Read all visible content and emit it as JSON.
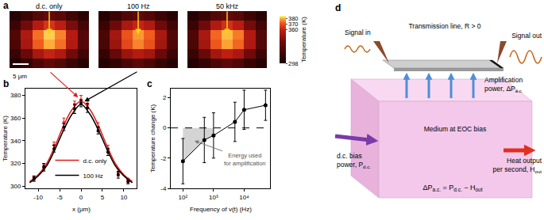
{
  "chart_data": [
    {
      "type": "heatmap",
      "panel": "a",
      "title": "d.c. only",
      "tick_labels": false,
      "scale_bar": "5 μm",
      "zlim": [
        298,
        385
      ],
      "z": [
        [
          302,
          310,
          322,
          330,
          324,
          312,
          304
        ],
        [
          312,
          335,
          352,
          360,
          354,
          338,
          316
        ],
        [
          322,
          352,
          372,
          380,
          374,
          355,
          326
        ],
        [
          324,
          354,
          374,
          382,
          376,
          356,
          326
        ],
        [
          314,
          338,
          356,
          364,
          358,
          340,
          318
        ],
        [
          304,
          314,
          326,
          332,
          328,
          316,
          306
        ]
      ]
    },
    {
      "type": "heatmap",
      "title": "100 Hz",
      "tick_labels": false,
      "zlim": [
        298,
        385
      ],
      "z": [
        [
          302,
          309,
          320,
          328,
          322,
          311,
          303
        ],
        [
          311,
          333,
          349,
          356,
          351,
          335,
          314
        ],
        [
          320,
          349,
          368,
          376,
          370,
          351,
          323
        ],
        [
          322,
          351,
          370,
          378,
          372,
          353,
          324
        ],
        [
          313,
          336,
          353,
          360,
          355,
          337,
          316
        ],
        [
          303,
          313,
          324,
          330,
          325,
          314,
          305
        ]
      ]
    },
    {
      "type": "heatmap",
      "title": "50 kHz",
      "tick_labels": false,
      "zlim": [
        298,
        385
      ],
      "zticks": [
        298,
        360,
        370,
        380
      ],
      "colorbar_title": "Temperature (K)",
      "z": [
        [
          302,
          310,
          321,
          329,
          323,
          311,
          304
        ],
        [
          312,
          334,
          351,
          359,
          353,
          337,
          315
        ],
        [
          321,
          351,
          371,
          379,
          373,
          354,
          325
        ],
        [
          323,
          353,
          373,
          381,
          375,
          355,
          325
        ],
        [
          313,
          337,
          355,
          363,
          357,
          339,
          317
        ],
        [
          304,
          313,
          325,
          331,
          327,
          315,
          305
        ]
      ]
    },
    {
      "type": "scatter",
      "panel": "b",
      "x_label": "x (μm)",
      "y_label": "Temperature (K)",
      "xlim": [
        -13,
        13
      ],
      "xticks": [
        -10,
        -5,
        0,
        5,
        10
      ],
      "ylim": [
        298,
        386
      ],
      "yticks": [
        300,
        320,
        340,
        360,
        380
      ],
      "legend": "bottom",
      "marker": "circle",
      "line_style": "solid",
      "series": [
        {
          "name": "d.c. only",
          "color": "#e31a1c",
          "x": [
            -11,
            -8.7,
            -6.3,
            -4,
            -1.5,
            0,
            1.5,
            4,
            6.3,
            8.7,
            11
          ],
          "values": [
            306,
            316,
            336,
            356,
            372,
            376,
            372,
            352,
            333,
            312,
            305
          ],
          "errors": [
            2,
            3,
            3,
            4,
            3,
            4,
            3,
            4,
            3,
            3,
            2
          ],
          "fit_x": [
            -12,
            -10,
            -8,
            -6,
            -4,
            -2,
            0,
            2,
            4,
            6,
            8,
            10,
            12
          ],
          "fit_values": [
            304,
            310,
            320,
            336,
            354,
            368,
            375,
            368,
            354,
            336,
            320,
            310,
            304
          ]
        },
        {
          "name": "100 Hz",
          "color": "#000000",
          "x": [
            -11,
            -8.7,
            -6.3,
            -4,
            -1.5,
            0,
            1.5,
            4,
            6.3,
            8.7,
            11
          ],
          "values": [
            307,
            317,
            333,
            352,
            368,
            373,
            369,
            349,
            330,
            310,
            304
          ],
          "errors": [
            2,
            3,
            3,
            3,
            4,
            3,
            4,
            3,
            3,
            3,
            2
          ],
          "fit_x": [
            -12,
            -10,
            -8,
            -6,
            -4,
            -2,
            0,
            2,
            4,
            6,
            8,
            10,
            12
          ],
          "fit_values": [
            303,
            309,
            318,
            333,
            350,
            364,
            372,
            364,
            350,
            333,
            318,
            309,
            303
          ]
        }
      ]
    },
    {
      "type": "scatter",
      "panel": "c",
      "x_label": "Frequency of v(t) (Hz)",
      "y_label": "Temperature change (K)",
      "log": "x",
      "xlim": [
        40,
        70000
      ],
      "xticks": [
        {
          "value": 100,
          "label": "10²"
        },
        {
          "value": 1000,
          "label": "10³"
        },
        {
          "value": 10000,
          "label": "10⁴"
        }
      ],
      "ylim": [
        -4,
        2.6
      ],
      "yticks": [
        -4,
        -2,
        0,
        2
      ],
      "x": [
        100,
        500,
        1000,
        5000,
        10000,
        50000
      ],
      "values": [
        -2.2,
        -0.8,
        -0.5,
        0.4,
        1.2,
        1.5
      ],
      "errors": [
        1.5,
        1.5,
        1.5,
        1.3,
        1.3,
        1.0
      ],
      "hline": 0,
      "color": "#000000",
      "marker": "circle",
      "line_style": "solid",
      "annotations": [
        "Energy used for amplification"
      ]
    }
  ],
  "diagram": {
    "panel": "d",
    "signal_in": "Signal in",
    "signal_out": "Signal out",
    "transmission_line": "Transmission line, R > 0",
    "medium": "Medium at EOC bias",
    "amplification": [
      [
        {
          "t": "Amplification"
        }
      ],
      [
        {
          "t": "power, ΔP"
        },
        {
          "sub": "a.c."
        }
      ]
    ],
    "dc_bias": [
      [
        {
          "t": "d.c. bias"
        }
      ],
      [
        {
          "t": "power, P"
        },
        {
          "sub": "d.c."
        }
      ]
    ],
    "heat": [
      [
        {
          "t": "Heat output"
        }
      ],
      [
        {
          "t": "per second, H"
        },
        {
          "sub": "out"
        }
      ]
    ],
    "equation": [
      {
        "t": "ΔP"
      },
      {
        "sub": "a.c."
      },
      {
        "t": " = P"
      },
      {
        "sub": "d.c."
      },
      {
        "t": " − H"
      },
      {
        "sub": "out"
      }
    ]
  }
}
